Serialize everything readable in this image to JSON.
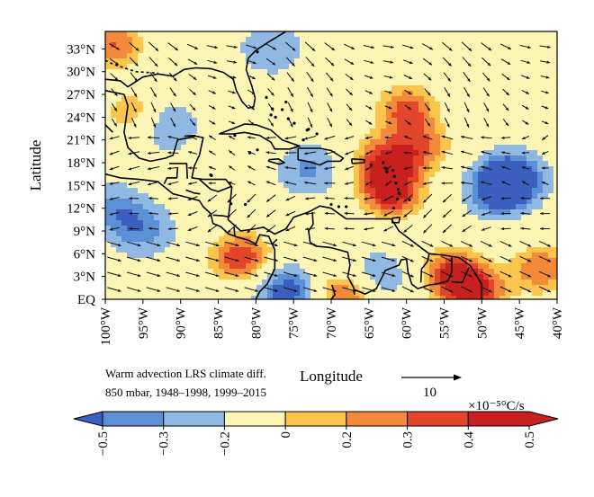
{
  "chart_data": {
    "type": "heatmap",
    "title": "",
    "xlabel": "Longitude",
    "ylabel": "Latitude",
    "x_ticks": [
      "100°W",
      "95°W",
      "90°W",
      "85°W",
      "80°W",
      "75°W",
      "70°W",
      "65°W",
      "60°W",
      "55°W",
      "50°W",
      "45°W",
      "40°W"
    ],
    "y_ticks": [
      "EQ",
      "3°N",
      "6°N",
      "9°N",
      "12°N",
      "15°N",
      "18°N",
      "21°N",
      "24°N",
      "27°N",
      "30°N",
      "33°N"
    ],
    "xlim": [
      -100,
      -40
    ],
    "ylim": [
      0,
      35
    ],
    "annotation_lines": [
      "Warm advection LRS climate diff.",
      "850 mbar, 1948–1998, 1999–2015"
    ],
    "vector_reference": {
      "label": "10"
    },
    "colorbar": {
      "unit": "×10⁻⁵°C/s",
      "tick_labels": [
        "−0.5",
        "−0.3",
        "−0.2",
        "0",
        "0.2",
        "0.3",
        "0.4",
        "0.5"
      ],
      "levels": [
        -0.5,
        -0.3,
        -0.2,
        0,
        0.2,
        0.3,
        0.4,
        0.5
      ],
      "colors": [
        "#3a5fbf",
        "#5b8fd6",
        "#8fb9e3",
        "#fdf5b3",
        "#fbc44a",
        "#f28a3a",
        "#e2452a",
        "#c81f1f"
      ]
    },
    "field_features": [
      {
        "lon": -62,
        "lat": 14,
        "value": 0.48
      },
      {
        "lon": -63,
        "lat": 18,
        "value": 0.42
      },
      {
        "lon": -60,
        "lat": 25,
        "value": 0.38
      },
      {
        "lon": -58,
        "lat": 20,
        "value": 0.3
      },
      {
        "lon": -82,
        "lat": 5.5,
        "value": 0.45
      },
      {
        "lon": -54,
        "lat": 3.5,
        "value": 0.4
      },
      {
        "lon": -51,
        "lat": 1,
        "value": 0.45
      },
      {
        "lon": -68,
        "lat": 0.5,
        "value": 0.42
      },
      {
        "lon": -42,
        "lat": 4,
        "value": 0.35
      },
      {
        "lon": -46,
        "lat": 16,
        "value": -0.55
      },
      {
        "lon": -48,
        "lat": 14,
        "value": -0.35
      },
      {
        "lon": -92,
        "lat": 23,
        "value": -0.3
      },
      {
        "lon": -95,
        "lat": 9,
        "value": -0.3
      },
      {
        "lon": -99,
        "lat": 12,
        "value": -0.28
      },
      {
        "lon": -76,
        "lat": 1,
        "value": -0.45
      },
      {
        "lon": -73,
        "lat": 17,
        "value": -0.28
      },
      {
        "lon": -64,
        "lat": 3,
        "value": -0.28
      },
      {
        "lon": -78,
        "lat": 33,
        "value": -0.25
      },
      {
        "lon": -99,
        "lat": 33.5,
        "value": 0.35
      },
      {
        "lon": -96,
        "lat": 24.5,
        "value": 0.28
      }
    ]
  }
}
